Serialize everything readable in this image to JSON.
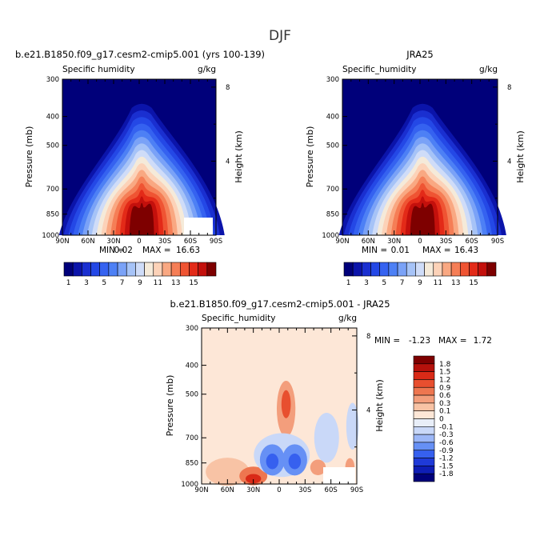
{
  "figure": {
    "title": "DJF"
  },
  "colors": {
    "full": [
      "#00007a",
      "#0b14aa",
      "#1a2fd0",
      "#2448e6",
      "#3562f0",
      "#4d80f5",
      "#7aa2f7",
      "#a6c3f7",
      "#cfdcf8",
      "#f5ead9",
      "#fcd2b8",
      "#f9a882",
      "#f57e56",
      "#ef5433",
      "#e32a18",
      "#c4100c",
      "#7e0000"
    ],
    "diff": [
      "#00007a",
      "#0e1db5",
      "#1f3ad8",
      "#3660ef",
      "#6690f5",
      "#9cb7f7",
      "#c9d8f8",
      "#e8eef8",
      "#fde7d7",
      "#f8c3a5",
      "#f39e7c",
      "#ee7650",
      "#e84f2f",
      "#d92a17",
      "#b5110b",
      "#7e0000"
    ]
  },
  "chart_data": [
    {
      "type": "contour",
      "panel": "model",
      "title": "b.e21.B1850.f09_g17.cesm2-cmip5.001 (yrs 100-139)",
      "left_label": "Specific humidity",
      "right_label": "g/kg",
      "xlabel": "",
      "ylabel": "Pressure (mb)",
      "ylabel_right": "Height (km)",
      "x_ticks": [
        "90N",
        "60N",
        "30N",
        "0",
        "30S",
        "60S",
        "90S"
      ],
      "y_ticks": [
        "300",
        "400",
        "500",
        "700",
        "850",
        "1000"
      ],
      "y_ticks_right": [
        "8",
        "4"
      ],
      "min_label": "MIN =",
      "min_value": "0.02",
      "max_label": "MAX =",
      "max_value": "16.63",
      "colorbar_labels": [
        "1",
        "3",
        "5",
        "7",
        "9",
        "11",
        "13",
        "15"
      ],
      "peak_value": 16.63,
      "peak_location": {
        "lat": -3,
        "pressure": 1000
      }
    },
    {
      "type": "contour",
      "panel": "obs",
      "title": "JRA25",
      "left_label": "Specific_humidity",
      "right_label": "g/kg",
      "xlabel": "",
      "ylabel": "Pressure (mb)",
      "ylabel_right": "Height (km)",
      "x_ticks": [
        "90N",
        "60N",
        "30N",
        "0",
        "30S",
        "60S",
        "90S"
      ],
      "y_ticks": [
        "300",
        "400",
        "500",
        "700",
        "850",
        "1000"
      ],
      "y_ticks_right": [
        "8",
        "4"
      ],
      "min_label": "MIN =",
      "min_value": "0.01",
      "max_label": "MAX =",
      "max_value": "16.43",
      "colorbar_labels": [
        "1",
        "3",
        "5",
        "7",
        "9",
        "11",
        "13",
        "15"
      ],
      "peak_value": 16.43,
      "peak_location": {
        "lat": -3,
        "pressure": 1000
      }
    },
    {
      "type": "contour",
      "panel": "difference",
      "title": "b.e21.B1850.f09_g17.cesm2-cmip5.001 - JRA25",
      "left_label": "Specific_humidity",
      "right_label": "g/kg",
      "xlabel": "",
      "ylabel": "Pressure (mb)",
      "ylabel_right": "Height (km)",
      "x_ticks": [
        "90N",
        "60N",
        "30N",
        "0",
        "30S",
        "60S",
        "90S"
      ],
      "y_ticks": [
        "300",
        "400",
        "500",
        "700",
        "850",
        "1000"
      ],
      "y_ticks_right": [
        "8",
        "4"
      ],
      "min_label": "MIN =",
      "min_value": "-1.23",
      "max_label": "MAX =",
      "max_value": "1.72",
      "colorbar_labels": [
        "1.8",
        "1.5",
        "1.2",
        "0.9",
        "0.6",
        "0.3",
        "0.1",
        "0",
        "-0.1",
        "-0.3",
        "-0.6",
        "-0.9",
        "-1.2",
        "-1.5",
        "-1.8"
      ]
    }
  ]
}
